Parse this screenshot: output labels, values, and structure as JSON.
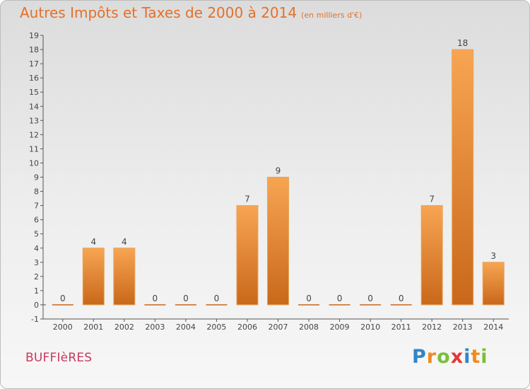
{
  "header": {
    "title": "Autres Impôts et Taxes de 2000 à 2014",
    "unit": "(en milliers d'€)"
  },
  "footer": {
    "commune": "BUFFIèRES",
    "logo": [
      "P",
      "r",
      "o",
      "x",
      "i",
      "t",
      "i"
    ]
  },
  "colors": {
    "title": "#e4702a",
    "commune": "#c8385e",
    "bar_top": "#f7a552",
    "bar_bottom": "#c9681a"
  },
  "chart_data": {
    "type": "bar",
    "title": "Autres Impôts et Taxes de 2000 à 2014",
    "subtitle": "(en milliers d'€)",
    "categories": [
      "2000",
      "2001",
      "2002",
      "2003",
      "2004",
      "2005",
      "2006",
      "2007",
      "2008",
      "2009",
      "2010",
      "2011",
      "2012",
      "2013",
      "2014"
    ],
    "values": [
      0,
      4,
      4,
      0,
      0,
      0,
      7,
      9,
      0,
      0,
      0,
      0,
      7,
      18,
      3
    ],
    "ylim": [
      -1,
      19
    ],
    "yticks": [
      -1,
      0,
      1,
      2,
      3,
      4,
      5,
      6,
      7,
      8,
      9,
      10,
      11,
      12,
      13,
      14,
      15,
      16,
      17,
      18,
      19
    ],
    "data_labels": true,
    "grid": false,
    "xlabel": "",
    "ylabel": ""
  }
}
